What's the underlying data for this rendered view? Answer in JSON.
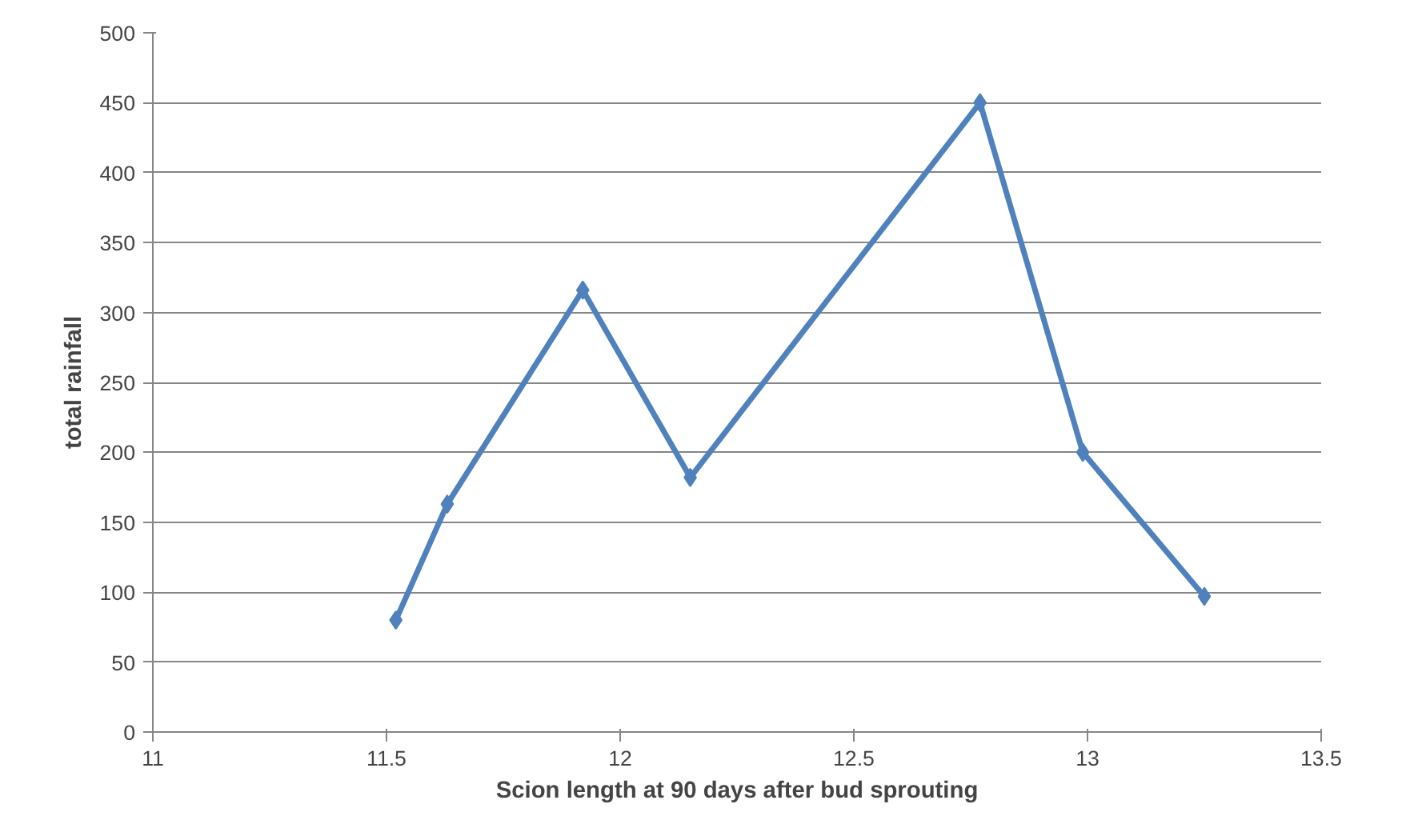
{
  "chart_data": {
    "type": "line",
    "xlabel": "Scion length at 90 days after bud sprouting",
    "ylabel": "total rainfall",
    "x": [
      11.52,
      11.63,
      11.92,
      12.15,
      12.77,
      12.99,
      13.25
    ],
    "series": [
      {
        "color": "#4f81bd",
        "values": [
          80,
          163,
          316,
          182,
          450,
          200,
          97
        ]
      }
    ],
    "xlim": [
      11,
      13.5
    ],
    "xticks": [
      11,
      11.5,
      12,
      12.5,
      13,
      13.5
    ],
    "ylim": [
      0,
      500
    ],
    "yticks": [
      0,
      50,
      100,
      150,
      200,
      250,
      300,
      350,
      400,
      450,
      500
    ],
    "grid": "y",
    "marker": "diamond",
    "line_style": "solid"
  }
}
